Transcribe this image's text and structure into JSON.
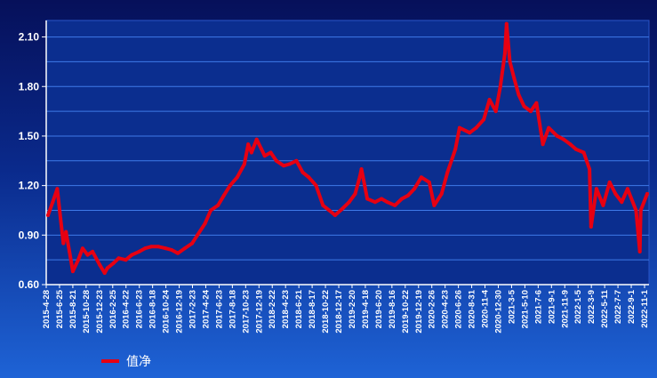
{
  "chart_data": {
    "type": "line",
    "title": "",
    "xlabel": "",
    "ylabel": "",
    "ylim": [
      0.6,
      2.2
    ],
    "yticks": [
      "0.60",
      "0.90",
      "1.20",
      "1.50",
      "1.80",
      "2.10"
    ],
    "grid": true,
    "legend_position": "bottom-left",
    "x_tick_labels": [
      "2015-4-28",
      "2015-6-25",
      "2015-8-21",
      "2015-10-28",
      "2015-12-23",
      "2016-2-25",
      "2016-4-22",
      "2016-6-23",
      "2016-8-18",
      "2016-10-24",
      "2016-12-19",
      "2017-2-23",
      "2017-4-24",
      "2017-6-23",
      "2017-8-18",
      "2017-10-23",
      "2017-12-19",
      "2018-2-22",
      "2018-4-23",
      "2018-6-21",
      "2018-8-17",
      "2018-10-22",
      "2018-12-17",
      "2019-2-20",
      "2019-4-18",
      "2019-6-20",
      "2019-8-16",
      "2019-10-22",
      "2019-12-19",
      "2020-2-26",
      "2020-4-23",
      "2020-6-26",
      "2020-8-31",
      "2020-11-4",
      "2020-12-30",
      "2021-3-5",
      "2021-5-10",
      "2021-7-6",
      "2021-9-1",
      "2021-11-9",
      "2022-1-5",
      "2022-3-9",
      "2022-5-11",
      "2022-7-7",
      "2022-9-1",
      "2022-11-1"
    ],
    "series": [
      {
        "name": "值净",
        "color": "#e60012",
        "x": [
          "2015-4-28",
          "2015-5-20",
          "2015-6-10",
          "2015-6-25",
          "2015-7-8",
          "2015-7-20",
          "2015-8-5",
          "2015-8-21",
          "2015-9-15",
          "2015-10-5",
          "2015-10-28",
          "2015-11-20",
          "2015-12-23",
          "2016-1-15",
          "2016-1-28",
          "2016-2-25",
          "2016-3-20",
          "2016-4-22",
          "2016-5-20",
          "2016-6-23",
          "2016-7-20",
          "2016-8-18",
          "2016-9-20",
          "2016-10-24",
          "2016-11-20",
          "2016-12-19",
          "2017-1-20",
          "2017-2-23",
          "2017-3-20",
          "2017-4-24",
          "2017-5-20",
          "2017-6-23",
          "2017-7-20",
          "2017-8-18",
          "2017-9-20",
          "2017-10-23",
          "2017-11-10",
          "2017-11-25",
          "2017-12-19",
          "2018-1-10",
          "2018-1-25",
          "2018-2-22",
          "2018-3-20",
          "2018-4-23",
          "2018-5-20",
          "2018-6-21",
          "2018-7-20",
          "2018-8-17",
          "2018-9-20",
          "2018-10-22",
          "2018-11-20",
          "2018-12-17",
          "2019-1-20",
          "2019-2-20",
          "2019-3-20",
          "2019-4-10",
          "2019-4-18",
          "2019-5-15",
          "2019-6-20",
          "2019-7-20",
          "2019-8-16",
          "2019-9-20",
          "2019-10-22",
          "2019-11-20",
          "2019-12-19",
          "2020-1-20",
          "2020-2-26",
          "2020-3-20",
          "2020-4-23",
          "2020-5-20",
          "2020-6-26",
          "2020-7-15",
          "2020-8-31",
          "2020-9-30",
          "2020-11-4",
          "2020-12-1",
          "2020-12-30",
          "2021-1-20",
          "2021-2-10",
          "2021-2-18",
          "2021-3-5",
          "2021-3-25",
          "2021-4-15",
          "2021-5-10",
          "2021-6-10",
          "2021-7-6",
          "2021-8-5",
          "2021-9-1",
          "2021-10-10",
          "2021-11-9",
          "2021-12-10",
          "2022-1-5",
          "2022-2-10",
          "2022-3-9",
          "2022-3-16",
          "2022-4-10",
          "2022-5-11",
          "2022-6-10",
          "2022-7-7",
          "2022-8-5",
          "2022-9-1",
          "2022-10-10",
          "2022-10-28",
          "2022-11-1",
          "2022-12-1"
        ],
        "values": [
          1.02,
          1.1,
          1.18,
          1.0,
          0.85,
          0.92,
          0.8,
          0.68,
          0.75,
          0.82,
          0.78,
          0.8,
          0.72,
          0.67,
          0.7,
          0.73,
          0.76,
          0.75,
          0.78,
          0.8,
          0.82,
          0.83,
          0.83,
          0.82,
          0.81,
          0.79,
          0.82,
          0.85,
          0.9,
          0.97,
          1.05,
          1.08,
          1.14,
          1.2,
          1.25,
          1.33,
          1.45,
          1.4,
          1.48,
          1.42,
          1.38,
          1.4,
          1.35,
          1.32,
          1.33,
          1.35,
          1.28,
          1.25,
          1.2,
          1.08,
          1.05,
          1.02,
          1.06,
          1.1,
          1.15,
          1.25,
          1.3,
          1.12,
          1.1,
          1.12,
          1.1,
          1.08,
          1.12,
          1.14,
          1.18,
          1.25,
          1.22,
          1.08,
          1.15,
          1.28,
          1.42,
          1.55,
          1.52,
          1.55,
          1.6,
          1.72,
          1.65,
          1.8,
          2.0,
          2.18,
          1.95,
          1.85,
          1.75,
          1.68,
          1.65,
          1.7,
          1.45,
          1.55,
          1.5,
          1.48,
          1.45,
          1.42,
          1.4,
          1.3,
          0.95,
          1.18,
          1.08,
          1.22,
          1.15,
          1.1,
          1.18,
          1.05,
          0.8,
          1.05,
          1.15
        ]
      }
    ]
  }
}
